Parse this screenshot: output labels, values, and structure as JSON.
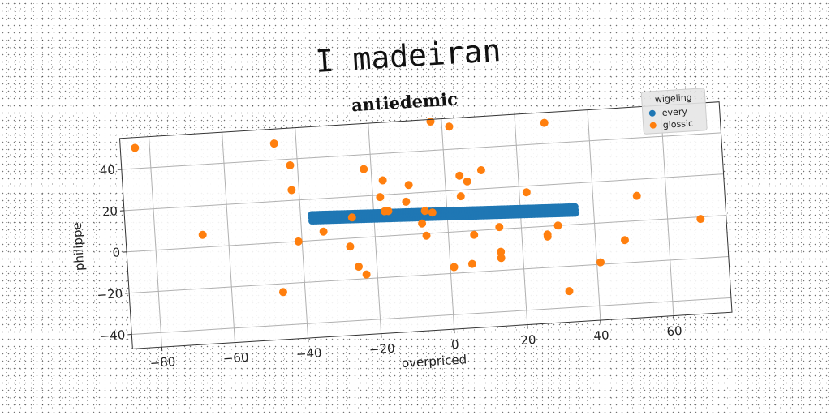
{
  "chart_data": {
    "type": "scatter",
    "title": "I madeiran",
    "subtitle": "antiedemic",
    "xlabel": "overpriced",
    "ylabel": "philippe",
    "xlim": [
      -88,
      76
    ],
    "ylim": [
      -47,
      55
    ],
    "xticks": [
      -80,
      -60,
      -40,
      -20,
      0,
      20,
      40,
      60
    ],
    "yticks": [
      -40,
      -20,
      0,
      20,
      40
    ],
    "xtick_labels": [
      "−80",
      "−60",
      "−40",
      "−20",
      "0",
      "20",
      "40",
      "60"
    ],
    "ytick_labels": [
      "−40",
      "−20",
      "0",
      "20",
      "40"
    ],
    "grid": true,
    "legend": {
      "title": "wigeling",
      "position": "top-right"
    },
    "series": [
      {
        "name": "every",
        "color": "#1f77b4",
        "style": "dense-line",
        "x_range": [
          -37,
          35
        ],
        "y_start": 11,
        "y_end": 7
      },
      {
        "name": "glossic",
        "color": "#ff7f0e",
        "points": [
          [
            -84,
            50
          ],
          [
            -67,
            6
          ],
          [
            -46,
            48
          ],
          [
            -42,
            37
          ],
          [
            -42,
            25
          ],
          [
            -41,
            0
          ],
          [
            -46,
            -24
          ],
          [
            -34,
            4
          ],
          [
            -26,
            10
          ],
          [
            -27,
            -4
          ],
          [
            -25,
            -14
          ],
          [
            -23,
            -18
          ],
          [
            -22,
            33
          ],
          [
            -17,
            27
          ],
          [
            -18,
            19
          ],
          [
            -16,
            12
          ],
          [
            -17,
            12
          ],
          [
            -10,
            24
          ],
          [
            -11,
            16
          ],
          [
            -7,
            5
          ],
          [
            -6,
            -1
          ],
          [
            -6,
            11
          ],
          [
            -4,
            10
          ],
          [
            -3,
            54
          ],
          [
            2,
            51
          ],
          [
            4,
            17
          ],
          [
            4,
            27
          ],
          [
            6,
            24
          ],
          [
            10,
            29
          ],
          [
            6,
            -16
          ],
          [
            7,
            -2
          ],
          [
            1,
            -17
          ],
          [
            14,
            1
          ],
          [
            14,
            -11
          ],
          [
            14,
            -14
          ],
          [
            22,
            17
          ],
          [
            27,
            -4
          ],
          [
            27,
            -5
          ],
          [
            30,
            0
          ],
          [
            28,
            50
          ],
          [
            32,
            -32
          ],
          [
            41,
            -19
          ],
          [
            48,
            -9
          ],
          [
            52,
            12
          ],
          [
            69,
            -1
          ]
        ]
      }
    ]
  }
}
